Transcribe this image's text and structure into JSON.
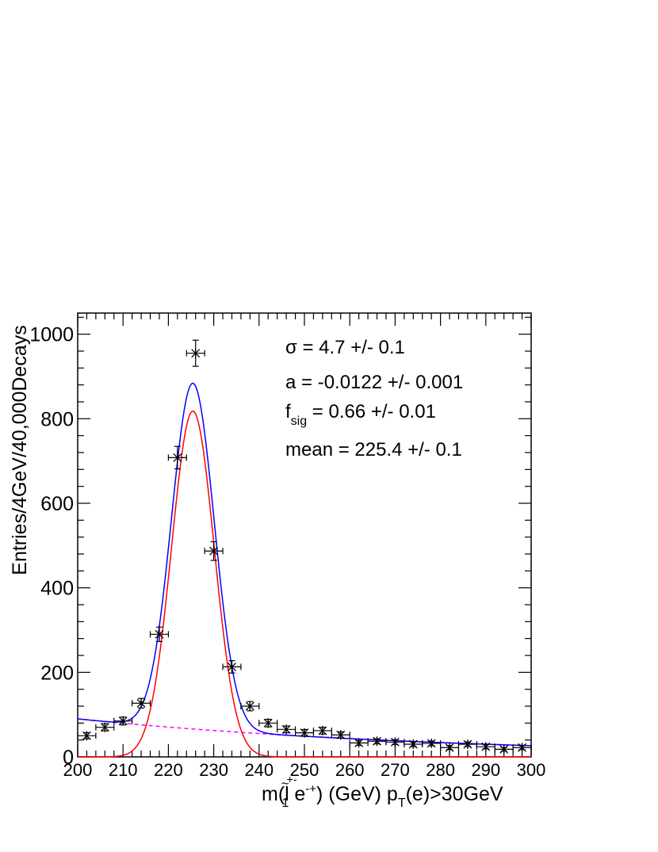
{
  "chart_data": {
    "type": "scatter",
    "xlim": [
      200,
      300
    ],
    "ylim": [
      0,
      1050
    ],
    "x_ticks": [
      "200",
      "210",
      "220",
      "230",
      "240",
      "250",
      "260",
      "270",
      "280",
      "290",
      "300"
    ],
    "y_ticks": [
      "0",
      "200",
      "400",
      "600",
      "800",
      "1000"
    ],
    "xlabel": {
      "part1": "m(",
      "part2": "l",
      "part3": "~",
      "part4": "+-",
      "part5": "1",
      "part6": " e",
      "part7": "-+",
      "part8": ") (GeV) p",
      "part9": "T",
      "part10": "(e)>30GeV"
    },
    "ylabel": "Entries/4GeV/40,000Decays",
    "annotations": {
      "sigma": "σ =  4.7 +/- 0.1",
      "a": "a = -0.0122 +/- 0.001",
      "fsig_f": "f",
      "fsig_sub": "sig",
      "fsig_rest": " =  0.66 +/- 0.01",
      "mean": "mean =  225.4 +/- 0.1"
    },
    "points": {
      "x": [
        202,
        206,
        210,
        214,
        218,
        222,
        226,
        230,
        234,
        238,
        242,
        246,
        250,
        254,
        258,
        262,
        266,
        270,
        274,
        278,
        282,
        286,
        290,
        294,
        298
      ],
      "y": [
        50,
        70,
        85,
        127,
        290,
        708,
        955,
        487,
        213,
        120,
        80,
        65,
        57,
        62,
        52,
        33,
        37,
        35,
        30,
        32,
        22,
        30,
        24,
        18,
        22
      ],
      "xerr": 2
    },
    "fit": {
      "mean": 225.4,
      "sigma": 4.7,
      "a": -0.0122,
      "f_sig": 0.66,
      "signal_peak": 818,
      "background_at_200": 90,
      "colors": {
        "total": "#0000ff",
        "signal": "#ff0000",
        "background": "#ff00ff",
        "points": "#000000"
      }
    }
  }
}
